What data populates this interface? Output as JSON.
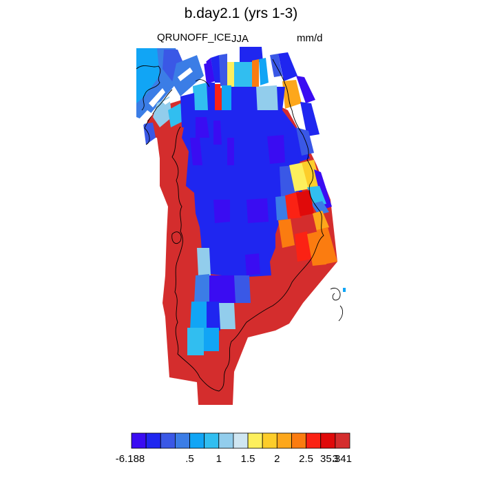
{
  "header": {
    "title": "b.day2.1 (yrs 1-3)",
    "variable": "QRUNOFF_ICE",
    "season": "JJA",
    "units": "mm/d"
  },
  "colorbar": {
    "colors": [
      "#3a0cf2",
      "#1f26f0",
      "#3a58e6",
      "#3b7de6",
      "#11a5f5",
      "#31bef0",
      "#92cdec",
      "#cfe6f2",
      "#fdef5c",
      "#fdcd2a",
      "#fda71b",
      "#fb7c10",
      "#fb2214",
      "#e00a0a",
      "#d42d2d"
    ],
    "tick_labels": [
      "-6.188",
      ".5",
      "1",
      "1.5",
      "2",
      "2.5",
      "3",
      "35.341"
    ]
  },
  "legend_colors": {
    "ocean_or_missing": "#ffffff",
    "coastline": "#000000"
  }
}
